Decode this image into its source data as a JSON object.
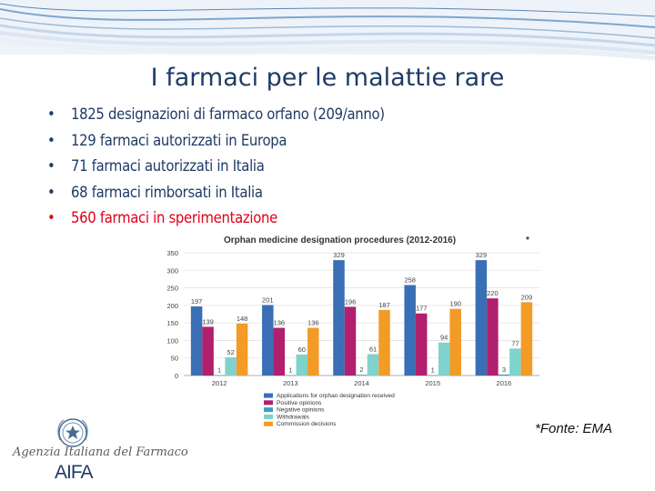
{
  "slide": {
    "title": "I farmaci per le malattie rare",
    "bullets": [
      {
        "text": "1825 designazioni di farmaco orfano (209/anno)",
        "color": "#1f3b66"
      },
      {
        "text": "129 farmaci autorizzati in Europa",
        "color": "#1f3b66"
      },
      {
        "text": "71 farmaci autorizzati in Italia",
        "color": "#1f3b66"
      },
      {
        "text": "68 farmaci rimborsati in Italia",
        "color": "#1f3b66"
      },
      {
        "text": "560 farmaci in sperimentazione",
        "color": "#e0001b"
      }
    ],
    "bullet_glyph": "•",
    "source": "*Fonte: EMA",
    "logo": {
      "script": "Agenzia Italiana del Farmaco",
      "acronym": "AIFA"
    }
  },
  "chart_data": {
    "type": "bar",
    "title": "Orphan medicine designation procedures (2012-2016)",
    "title_marker": "*",
    "categories": [
      "2012",
      "2013",
      "2014",
      "2015",
      "2016"
    ],
    "series": [
      {
        "name": "Applications for orphan designation received",
        "color": "#3a6fb5",
        "values": [
          197,
          201,
          329,
          258,
          329
        ]
      },
      {
        "name": "Positive opinions",
        "color": "#b0206e",
        "values": [
          139,
          136,
          196,
          177,
          220
        ]
      },
      {
        "name": "Negative opinions",
        "color": "#3aa0c8",
        "values": [
          1,
          1,
          2,
          1,
          3
        ]
      },
      {
        "name": "Withdrawals",
        "color": "#80d2cc",
        "values": [
          52,
          60,
          61,
          94,
          77
        ]
      },
      {
        "name": "Commission decisions",
        "color": "#f29b26",
        "values": [
          148,
          136,
          187,
          190,
          209
        ]
      }
    ],
    "yticks": [
      0,
      50,
      100,
      150,
      200,
      250,
      300,
      350
    ],
    "ylim": [
      0,
      350
    ],
    "grid": true,
    "legend_position": "bottom"
  }
}
